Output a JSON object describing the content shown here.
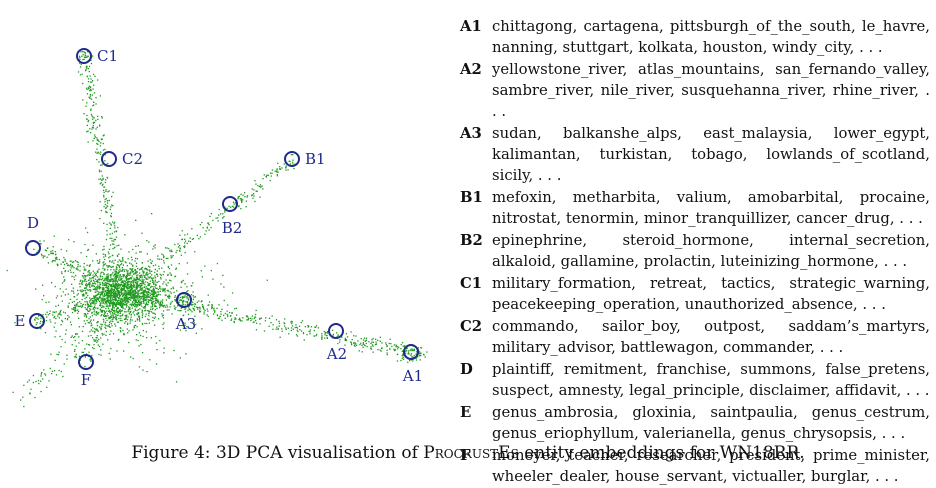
{
  "figure": {
    "number_label": "Figure 4:",
    "caption_before": "3D PCA visualisation of ",
    "caption_method": "ProcrustEs",
    "caption_after": " entity embeddings for WN18RR."
  },
  "points": [
    {
      "label": "C1"
    },
    {
      "label": "C2"
    },
    {
      "label": "B1"
    },
    {
      "label": "B2"
    },
    {
      "label": "D"
    },
    {
      "label": "E"
    },
    {
      "label": "A3"
    },
    {
      "label": "A2"
    },
    {
      "label": "A1"
    },
    {
      "label": "F"
    }
  ],
  "legend": [
    {
      "key": "A1",
      "text": "chittagong, cartagena, pittsburgh_of_the_south, le_havre, nanning, stuttgart, kolkata, houston, windy_city, . . ."
    },
    {
      "key": "A2",
      "text": "yellowstone_river, atlas_mountains, san_fernando_valley, sambre_river, nile_river, susquehanna_river, rhine_river, . . ."
    },
    {
      "key": "A3",
      "text": "sudan, balkanshe_alps, east_malaysia, lower_egypt, kalimantan, turkistan, tobago, lowlands_of_scotland, sicily, . . ."
    },
    {
      "key": "B1",
      "text": "mefoxin, metharbita, valium, amobarbital, procaine, nitrostat, tenormin, minor_tranquillizer, cancer_drug, . . ."
    },
    {
      "key": "B2",
      "text": "epinephrine, steroid_hormone, internal_secretion, alkaloid, gallamine, prolactin, luteinizing_hormone, . . ."
    },
    {
      "key": "C1",
      "text": "military_formation, retreat, tactics, strategic_warning, peacekeeping_operation, unauthorized_absence, . . ."
    },
    {
      "key": "C2",
      "text": "commando, sailor_boy, outpost, saddam’s_martyrs, military_advisor, battlewagon, commander, . . ."
    },
    {
      "key": "D",
      "text": "plaintiff, remitment, franchise, summons, false_pretens, suspect, amnesty, legal_principle, disclaimer, affidavit, . . ."
    },
    {
      "key": "E",
      "text": "genus_ambrosia, gloxinia, saintpaulia, genus_cestrum, genus_eriophyllum, valerianella, genus_chrysopsis, . . ."
    },
    {
      "key": "F",
      "text": "moneyer, teacher, researcher, president, prime_minister, wheeler_dealer, house_servant, victualler, burglar, . . ."
    }
  ],
  "colors": {
    "scatter": "#1e9a1e",
    "circle": "#1f2a8c"
  }
}
